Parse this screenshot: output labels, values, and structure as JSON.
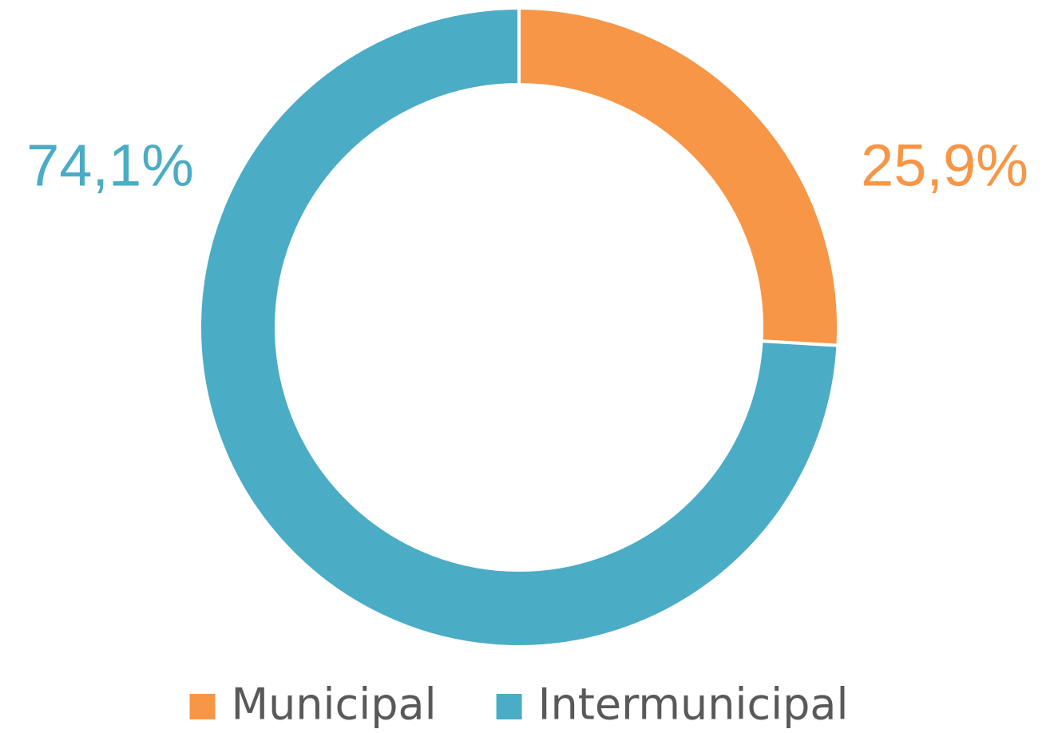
{
  "chart_data": {
    "type": "donut",
    "categories": [
      "Municipal",
      "Intermunicipal"
    ],
    "values": [
      25.9,
      74.1
    ],
    "value_labels": [
      "25,9%",
      "74,1%"
    ],
    "colors": [
      "#f79646",
      "#4bacc6"
    ]
  }
}
